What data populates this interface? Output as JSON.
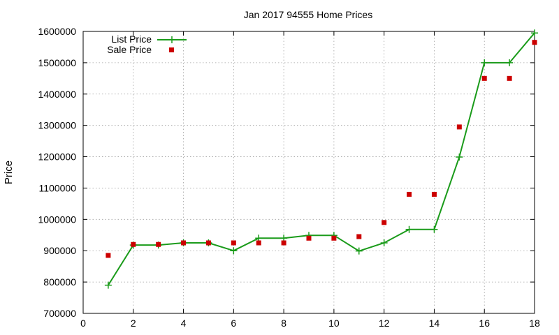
{
  "chart_data": {
    "type": "line",
    "title": "Jan 2017 94555 Home Prices",
    "xlabel": "",
    "ylabel": "Price",
    "xlim": [
      0,
      18
    ],
    "ylim": [
      700000,
      1600000
    ],
    "x_ticks": [
      "0",
      "2",
      "4",
      "6",
      "8",
      "10",
      "12",
      "14",
      "16",
      "18"
    ],
    "y_ticks": [
      "700000",
      "800000",
      "900000",
      "1000000",
      "1100000",
      "1200000",
      "1300000",
      "1400000",
      "1500000",
      "1600000"
    ],
    "grid": true,
    "legend_position": "top-left",
    "series": [
      {
        "name": "List Price",
        "style": "line-with-plus-markers",
        "color": "#1a9b1a",
        "x": [
          1,
          2,
          3,
          4,
          5,
          6,
          7,
          8,
          9,
          10,
          11,
          12,
          13,
          14,
          15,
          16,
          17,
          18
        ],
        "values": [
          790000,
          918000,
          918000,
          925000,
          925000,
          900000,
          940000,
          940000,
          949000,
          949000,
          899000,
          925000,
          968000,
          968000,
          1199000,
          1500000,
          1500000,
          1595000
        ]
      },
      {
        "name": "Sale Price",
        "style": "square-markers",
        "color": "#cc0000",
        "x": [
          1,
          2,
          3,
          4,
          5,
          6,
          7,
          8,
          9,
          10,
          11,
          12,
          13,
          14,
          15,
          16,
          17,
          18
        ],
        "values": [
          885000,
          920000,
          920000,
          925000,
          925000,
          925000,
          925000,
          925000,
          940000,
          940000,
          945000,
          990000,
          1080000,
          1080000,
          1295000,
          1450000,
          1450000,
          1565000
        ]
      }
    ]
  }
}
